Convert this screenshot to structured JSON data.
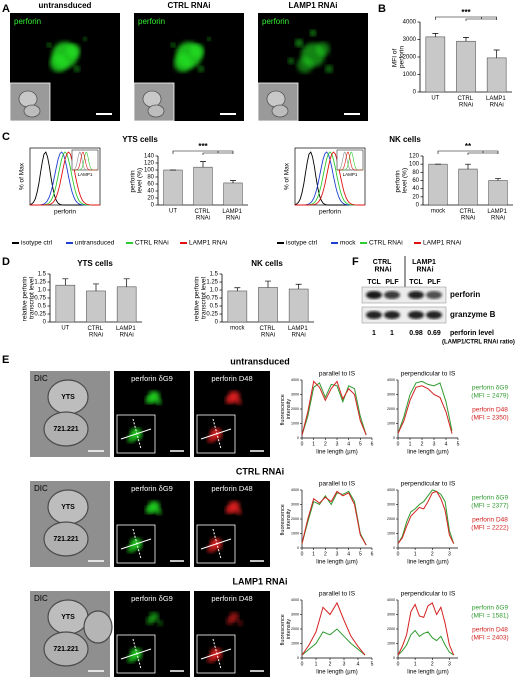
{
  "panel_letters": [
    "A",
    "B",
    "C",
    "D",
    "E",
    "F"
  ],
  "panel_a": {
    "images": [
      {
        "title": "untransduced",
        "stain": "perforin"
      },
      {
        "title": "CTRL RNAi",
        "stain": "perforin"
      },
      {
        "title": "LAMP1 RNAi",
        "stain": "perforin"
      }
    ]
  },
  "panel_b": {
    "type": "bar",
    "y_label": "MFI of perforin",
    "categories": [
      "UT",
      "CTRL RNAi",
      "LAMP1 RNAi"
    ],
    "values": [
      3150,
      2900,
      1950
    ],
    "errors": [
      200,
      220,
      450
    ],
    "ylim": [
      0,
      4000
    ],
    "yticks": [
      0,
      1000,
      2000,
      3000,
      4000
    ],
    "significance": "***",
    "color": "#c8c8c8"
  },
  "panel_c": {
    "charts": [
      {
        "title": "YTS cells",
        "histogram": {
          "x_label": "perforin",
          "y_label": "% of Max",
          "inset_label": "LAMP1"
        },
        "bar": {
          "type": "bar",
          "y_label": "perforin level (%)",
          "categories": [
            "UT",
            "CTRL RNAi",
            "LAMP1 RNAi"
          ],
          "values": [
            100,
            108,
            63
          ],
          "errors": [
            0,
            16,
            7
          ],
          "ylim": [
            0,
            140
          ],
          "yticks": [
            0,
            20,
            40,
            60,
            80,
            100,
            120,
            140
          ],
          "significance": "***",
          "color": "#c8c8c8"
        },
        "legend": [
          {
            "name": "isotype ctrl",
            "color": "#000000"
          },
          {
            "name": "untransduced",
            "color": "#1f3fd0"
          },
          {
            "name": "CTRL RNAi",
            "color": "#2ecc2e"
          },
          {
            "name": "LAMP1 RNAi",
            "color": "#e01010"
          }
        ]
      },
      {
        "title": "NK cells",
        "histogram": {
          "x_label": "perforin",
          "y_label": "% of Max",
          "inset_label": "LAMP1"
        },
        "bar": {
          "type": "bar",
          "y_label": "perforin level (%)",
          "categories": [
            "mock",
            "CTRL RNAi",
            "LAMP1 RNAi"
          ],
          "values": [
            100,
            88,
            60
          ],
          "errors": [
            0,
            12,
            5
          ],
          "ylim": [
            0,
            120
          ],
          "yticks": [
            0,
            20,
            40,
            60,
            80,
            100,
            120
          ],
          "significance": "**",
          "color": "#c8c8c8"
        },
        "legend": [
          {
            "name": "isotype ctrl",
            "color": "#000000"
          },
          {
            "name": "mock",
            "color": "#1f3fd0"
          },
          {
            "name": "CTRL RNAi",
            "color": "#2ecc2e"
          },
          {
            "name": "LAMP1 RNAi",
            "color": "#e01010"
          }
        ]
      }
    ]
  },
  "panel_d": {
    "charts": [
      {
        "type": "bar",
        "title": "YTS cells",
        "y_label": "relative perforin transcript level",
        "categories": [
          "UT",
          "CTRL RNAi",
          "LAMP1 RNAi"
        ],
        "values": [
          1.15,
          0.97,
          1.1
        ],
        "errors": [
          0.2,
          0.22,
          0.25
        ],
        "ylim": [
          0,
          1.5
        ],
        "yticks": [
          0,
          0.25,
          0.5,
          0.75,
          {
            "value": 1,
            "label": "1.0"
          },
          1.25,
          1.5
        ],
        "color": "#c8c8c8"
      },
      {
        "type": "bar",
        "title": "NK cells",
        "y_label": "relative perforin transcript level",
        "categories": [
          "mock",
          "CTRL RNAi",
          "LAMP1 RNAi"
        ],
        "values": [
          0.97,
          1.08,
          1.03
        ],
        "errors": [
          0.1,
          0.2,
          0.15
        ],
        "ylim": [
          0,
          1.5
        ],
        "yticks": [
          0,
          0.25,
          0.5,
          0.75,
          {
            "value": 1,
            "label": "1.0"
          },
          1.25,
          1.5
        ],
        "color": "#c8c8c8"
      }
    ]
  },
  "panel_f": {
    "groups": [
      "CTRL RNAi",
      "LAMP1 RNAi"
    ],
    "lanes": [
      "TCL",
      "PLF",
      "TCL",
      "PLF"
    ],
    "bands": [
      "perforin",
      "granzyme B"
    ],
    "ratios": [
      1,
      1,
      0.98,
      0.69
    ],
    "ratio_label": "perforin level",
    "ratio_note": "(LAMP1/CTRL RNAi ratio)"
  },
  "panel_e": {
    "rows": [
      {
        "title": "untransduced",
        "dic": "DIC",
        "cell_labels": [
          "YTS",
          "721.221"
        ],
        "stains": [
          "perforin δG9",
          "perforin D48"
        ],
        "mfi_labels": [
          "(MFI = 2479)",
          "(MFI = 2350)"
        ],
        "plots": [
          {
            "type": "line",
            "title": "parallel to IS",
            "x_label": "line length (µm)",
            "y_label": "fluorescence intensity",
            "xlim": [
              0,
              6
            ],
            "xticks": [
              0,
              1,
              2,
              3,
              4,
              5,
              6
            ],
            "ylim": [
              0,
              4000
            ],
            "yticks": [
              0,
              1000,
              2000,
              3000,
              4000
            ],
            "series": [
              {
                "name": "perforin δG9",
                "color": "#2f9a2f",
                "x": [
                  0,
                  0.5,
                  1,
                  1.5,
                  2,
                  2.5,
                  3,
                  3.5,
                  4,
                  4.5,
                  5,
                  5.5
                ],
                "values": [
                  200,
                  1500,
                  3500,
                  3800,
                  2800,
                  3700,
                  3600,
                  2500,
                  3600,
                  3400,
                  1500,
                  200
                ]
              },
              {
                "name": "perforin D48",
                "color": "#d42020",
                "x": [
                  0,
                  0.5,
                  1,
                  1.5,
                  2,
                  2.5,
                  3,
                  3.5,
                  4,
                  4.5,
                  5,
                  5.5
                ],
                "values": [
                  200,
                  1800,
                  3900,
                  3500,
                  2600,
                  3400,
                  3900,
                  2700,
                  3400,
                  3000,
                  1200,
                  200
                ]
              }
            ]
          },
          {
            "type": "line",
            "title": "perpendicular to IS",
            "x_label": "line length (µm)",
            "y_label": "fluorescence intensity",
            "xlim": [
              0,
              5
            ],
            "xticks": [
              0,
              1,
              2,
              3,
              4,
              5
            ],
            "ylim": [
              0,
              4000
            ],
            "yticks": [
              0,
              1000,
              2000,
              3000,
              4000
            ],
            "series": [
              {
                "name": "perforin δG9",
                "color": "#2f9a2f",
                "x": [
                  0,
                  0.5,
                  1,
                  1.5,
                  2,
                  2.5,
                  3,
                  3.5,
                  4,
                  4.5
                ],
                "values": [
                  300,
                  1500,
                  3000,
                  3800,
                  3900,
                  3700,
                  3600,
                  3800,
                  2500,
                  500
                ]
              },
              {
                "name": "perforin D48",
                "color": "#d42020",
                "x": [
                  0,
                  0.5,
                  1,
                  1.5,
                  2,
                  2.5,
                  3,
                  3.5,
                  4,
                  4.5
                ],
                "values": [
                  300,
                  1200,
                  2600,
                  3500,
                  3600,
                  3400,
                  3000,
                  2800,
                  1800,
                  300
                ]
              }
            ]
          }
        ]
      },
      {
        "title": "CTRL RNAi",
        "dic": "DIC",
        "cell_labels": [
          "YTS",
          "721.221"
        ],
        "stains": [
          "perforin δG9",
          "perforin D48"
        ],
        "mfi_labels": [
          "(MFI = 2377)",
          "(MFI = 2222)"
        ],
        "plots": [
          {
            "type": "line",
            "title": "parallel to IS",
            "x_label": "line length (µm)",
            "y_label": "fluorescence intensity",
            "xlim": [
              0,
              6
            ],
            "xticks": [
              0,
              1,
              2,
              3,
              4,
              5,
              6
            ],
            "ylim": [
              0,
              4000
            ],
            "yticks": [
              0,
              1000,
              2000,
              3000,
              4000
            ],
            "series": [
              {
                "name": "perforin δG9",
                "color": "#2f9a2f",
                "x": [
                  0,
                  0.5,
                  1,
                  1.5,
                  2,
                  2.5,
                  3,
                  3.5,
                  4,
                  4.5,
                  5,
                  5.5
                ],
                "values": [
                  300,
                  1800,
                  3200,
                  3000,
                  3600,
                  3000,
                  3800,
                  3700,
                  3900,
                  3200,
                  1000,
                  200
                ]
              },
              {
                "name": "perforin D48",
                "color": "#d42020",
                "x": [
                  0,
                  0.5,
                  1,
                  1.5,
                  2,
                  2.5,
                  3,
                  3.5,
                  4,
                  4.5,
                  5,
                  5.5
                ],
                "values": [
                  300,
                  2000,
                  3400,
                  3100,
                  3500,
                  3200,
                  3900,
                  3600,
                  3800,
                  3000,
                  900,
                  200
                ]
              }
            ]
          },
          {
            "type": "line",
            "title": "perpendicular to IS",
            "x_label": "line length (µm)",
            "y_label": "fluorescence intensity",
            "xlim": [
              0,
              3.5
            ],
            "xticks": [
              0,
              1,
              2,
              3
            ],
            "ylim": [
              0,
              4000
            ],
            "yticks": [
              0,
              1000,
              2000,
              3000,
              4000
            ],
            "series": [
              {
                "name": "perforin δG9",
                "color": "#2f9a2f",
                "x": [
                  0,
                  0.25,
                  0.5,
                  0.75,
                  1,
                  1.25,
                  1.5,
                  1.75,
                  2,
                  2.25,
                  2.5,
                  2.75,
                  3,
                  3.25
                ],
                "values": [
                  300,
                  800,
                  1800,
                  2500,
                  2700,
                  3000,
                  3200,
                  3600,
                  4000,
                  3900,
                  3700,
                  3200,
                  1200,
                  300
                ]
              },
              {
                "name": "perforin D48",
                "color": "#d42020",
                "x": [
                  0,
                  0.25,
                  0.5,
                  0.75,
                  1,
                  1.25,
                  1.5,
                  1.75,
                  2,
                  2.25,
                  2.5,
                  2.75,
                  3,
                  3.25
                ],
                "values": [
                  300,
                  700,
                  1500,
                  2200,
                  2500,
                  2800,
                  2700,
                  3200,
                  3800,
                  3900,
                  3400,
                  2600,
                  900,
                  300
                ]
              }
            ]
          }
        ]
      },
      {
        "title": "LAMP1 RNAi",
        "dic": "DIC",
        "cell_labels": [
          "YTS",
          "721.221"
        ],
        "stains": [
          "perforin δG9",
          "perforin D48"
        ],
        "mfi_labels": [
          "(MFI = 1581)",
          "(MFI = 2403)"
        ],
        "plots": [
          {
            "type": "line",
            "title": "parallel to IS",
            "x_label": "line length (µm)",
            "y_label": "fluorescence intensity",
            "xlim": [
              0,
              5
            ],
            "xticks": [
              0,
              1,
              2,
              3,
              4,
              5
            ],
            "ylim": [
              0,
              4000
            ],
            "yticks": [
              0,
              1000,
              2000,
              3000,
              4000
            ],
            "series": [
              {
                "name": "perforin δG9",
                "color": "#2f9a2f",
                "x": [
                  0,
                  0.5,
                  1,
                  1.5,
                  2,
                  2.5,
                  3,
                  3.5,
                  4,
                  4.5
                ],
                "values": [
                  200,
                  600,
                  1000,
                  1800,
                  1600,
                  2000,
                  1500,
                  1000,
                  600,
                  200
                ]
              },
              {
                "name": "perforin D48",
                "color": "#d42020",
                "x": [
                  0,
                  0.5,
                  1,
                  1.5,
                  2,
                  2.5,
                  3,
                  3.5,
                  4,
                  4.5
                ],
                "values": [
                  200,
                  900,
                  1800,
                  3500,
                  3000,
                  3800,
                  2600,
                  1500,
                  800,
                  200
                ]
              }
            ]
          },
          {
            "type": "line",
            "title": "perpendicular to IS",
            "x_label": "line length (µm)",
            "y_label": "fluorescence intensity",
            "xlim": [
              0,
              3.5
            ],
            "xticks": [
              0,
              1,
              2,
              3
            ],
            "ylim": [
              0,
              4000
            ],
            "yticks": [
              0,
              1000,
              2000,
              3000,
              4000
            ],
            "series": [
              {
                "name": "perforin δG9",
                "color": "#2f9a2f",
                "x": [
                  0,
                  0.25,
                  0.5,
                  0.75,
                  1,
                  1.25,
                  1.5,
                  1.75,
                  2,
                  2.25,
                  2.5,
                  2.75,
                  3,
                  3.25
                ],
                "values": [
                  200,
                  500,
                  900,
                  1600,
                  1900,
                  1500,
                  1700,
                  1800,
                  1400,
                  1200,
                  1500,
                  900,
                  400,
                  200
                ]
              },
              {
                "name": "perforin D48",
                "color": "#d42020",
                "x": [
                  0,
                  0.25,
                  0.5,
                  0.75,
                  1,
                  1.25,
                  1.5,
                  1.75,
                  2,
                  2.25,
                  2.5,
                  2.75,
                  3,
                  3.25
                ],
                "values": [
                  200,
                  800,
                  1600,
                  3200,
                  3700,
                  2900,
                  2800,
                  3600,
                  3800,
                  3000,
                  3500,
                  2400,
                  900,
                  200
                ]
              }
            ]
          }
        ]
      }
    ]
  }
}
